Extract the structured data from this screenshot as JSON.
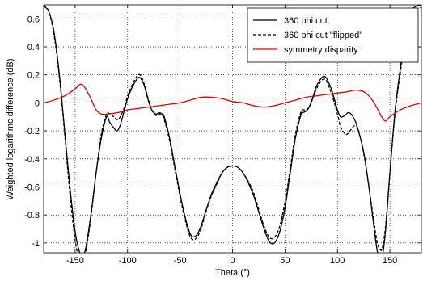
{
  "chart_data": {
    "type": "line",
    "title": "",
    "xlabel": "Theta (°)",
    "ylabel": "Weighted logarithmc difference (dB)",
    "xlim": [
      -180,
      180
    ],
    "ylim": [
      -1.07,
      0.7
    ],
    "xticks": [
      -150,
      -100,
      -50,
      0,
      50,
      100,
      150
    ],
    "yticks": [
      -1,
      -0.8,
      -0.6,
      -0.4,
      -0.2,
      0,
      0.2,
      0.4,
      0.6
    ],
    "xtick_labels": [
      "-150",
      "-100",
      "-50",
      "0",
      "50",
      "100",
      "150"
    ],
    "ytick_labels": [
      "-1",
      "-0.8",
      "-0.6",
      "-0.4",
      "-0.2",
      "0",
      "0.2",
      "0.4",
      "0.6"
    ],
    "grid": true,
    "legend_position": "top-right",
    "series": [
      {
        "name": "360 phi cut",
        "color": "#000000",
        "style": "solid",
        "x": [
          -180,
          -175,
          -170,
          -165,
          -160,
          -155,
          -150,
          -146,
          -143,
          -140,
          -135,
          -130,
          -125,
          -120,
          -117,
          -113,
          -110,
          -107,
          -103,
          -100,
          -95,
          -90,
          -87,
          -84,
          -80,
          -77,
          -73,
          -70,
          -67,
          -65,
          -60,
          -55,
          -50,
          -45,
          -40,
          -35,
          -30,
          -25,
          -20,
          -15,
          -10,
          -5,
          0,
          5,
          10,
          15,
          20,
          25,
          30,
          35,
          40,
          45,
          50,
          55,
          60,
          65,
          67,
          70,
          73,
          77,
          80,
          84,
          87,
          90,
          95,
          100,
          103,
          107,
          110,
          113,
          117,
          120,
          125,
          130,
          135,
          138,
          141,
          143,
          146,
          150,
          155,
          160,
          165,
          170,
          175,
          180
        ],
        "y": [
          0.69,
          0.65,
          0.5,
          0.2,
          -0.2,
          -0.6,
          -0.92,
          -1.06,
          -1.09,
          -1.04,
          -0.8,
          -0.5,
          -0.25,
          -0.1,
          -0.14,
          -0.18,
          -0.2,
          -0.16,
          -0.05,
          0.03,
          0.12,
          0.18,
          0.17,
          0.12,
          0.01,
          -0.05,
          -0.08,
          -0.07,
          -0.08,
          -0.1,
          -0.25,
          -0.45,
          -0.65,
          -0.82,
          -0.94,
          -0.95,
          -0.88,
          -0.76,
          -0.65,
          -0.57,
          -0.5,
          -0.46,
          -0.45,
          -0.46,
          -0.5,
          -0.57,
          -0.66,
          -0.78,
          -0.9,
          -0.99,
          -1.0,
          -0.92,
          -0.75,
          -0.5,
          -0.25,
          -0.09,
          -0.07,
          -0.06,
          -0.03,
          0.05,
          0.12,
          0.17,
          0.19,
          0.17,
          0.08,
          -0.05,
          -0.1,
          -0.09,
          -0.07,
          -0.08,
          -0.13,
          -0.2,
          -0.35,
          -0.6,
          -0.9,
          -1.06,
          -1.13,
          -1.09,
          -0.9,
          -0.5,
          -0.05,
          0.25,
          0.5,
          0.65,
          0.69,
          0.7
        ]
      },
      {
        "name": "360 phi cut \"flipped\"",
        "color": "#000000",
        "style": "dashed",
        "x": [
          -180,
          -175,
          -170,
          -165,
          -160,
          -155,
          -150,
          -146,
          -143,
          -140,
          -135,
          -130,
          -125,
          -120,
          -117,
          -113,
          -110,
          -107,
          -103,
          -100,
          -95,
          -90,
          -87,
          -84,
          -80,
          -77,
          -73,
          -70,
          -67,
          -65,
          -60,
          -55,
          -50,
          -45,
          -40,
          -35,
          -30,
          -25,
          -20,
          -15,
          -10,
          -5,
          0,
          5,
          10,
          15,
          20,
          25,
          30,
          35,
          40,
          45,
          50,
          55,
          60,
          65,
          67,
          70,
          73,
          77,
          80,
          84,
          87,
          90,
          95,
          100,
          103,
          107,
          110,
          113,
          117,
          120,
          125,
          130,
          135,
          138,
          141,
          143,
          146,
          150,
          155,
          160,
          165,
          170,
          175,
          180
        ],
        "y": [
          0.7,
          0.65,
          0.48,
          0.18,
          -0.22,
          -0.65,
          -0.98,
          -1.12,
          -1.14,
          -1.07,
          -0.82,
          -0.5,
          -0.22,
          -0.08,
          -0.08,
          -0.1,
          -0.12,
          -0.1,
          -0.03,
          0.05,
          0.14,
          0.2,
          0.19,
          0.13,
          0.02,
          -0.05,
          -0.09,
          -0.08,
          -0.09,
          -0.12,
          -0.27,
          -0.47,
          -0.67,
          -0.84,
          -0.96,
          -0.97,
          -0.9,
          -0.77,
          -0.66,
          -0.58,
          -0.5,
          -0.46,
          -0.45,
          -0.46,
          -0.5,
          -0.56,
          -0.64,
          -0.76,
          -0.88,
          -0.96,
          -0.96,
          -0.88,
          -0.71,
          -0.47,
          -0.22,
          -0.07,
          -0.05,
          -0.05,
          -0.03,
          0.04,
          0.1,
          0.15,
          0.17,
          0.15,
          0.05,
          -0.08,
          -0.17,
          -0.22,
          -0.22,
          -0.19,
          -0.16,
          -0.2,
          -0.36,
          -0.6,
          -0.86,
          -1.0,
          -1.05,
          -1.03,
          -0.87,
          -0.5,
          -0.07,
          0.22,
          0.47,
          0.62,
          0.67,
          0.68
        ]
      },
      {
        "name": "symmetry disparity",
        "color": "#e00000",
        "style": "solid",
        "x": [
          -180,
          -170,
          -160,
          -150,
          -146,
          -143,
          -140,
          -135,
          -130,
          -125,
          -120,
          -110,
          -100,
          -90,
          -80,
          -70,
          -60,
          -50,
          -40,
          -30,
          -20,
          -10,
          0,
          10,
          20,
          30,
          40,
          50,
          60,
          70,
          80,
          90,
          100,
          110,
          115,
          120,
          125,
          130,
          135,
          140,
          143,
          146,
          150,
          160,
          170,
          180
        ],
        "y": [
          0.0,
          0.02,
          0.05,
          0.1,
          0.13,
          0.13,
          0.1,
          0.03,
          -0.05,
          -0.08,
          -0.08,
          -0.07,
          -0.05,
          -0.04,
          -0.03,
          -0.02,
          -0.01,
          0.0,
          0.02,
          0.04,
          0.04,
          0.03,
          0.01,
          0.0,
          -0.02,
          -0.03,
          -0.02,
          0.0,
          0.02,
          0.04,
          0.05,
          0.06,
          0.07,
          0.08,
          0.09,
          0.09,
          0.08,
          0.05,
          0.0,
          -0.07,
          -0.11,
          -0.13,
          -0.1,
          -0.05,
          -0.02,
          0.0
        ]
      }
    ]
  }
}
